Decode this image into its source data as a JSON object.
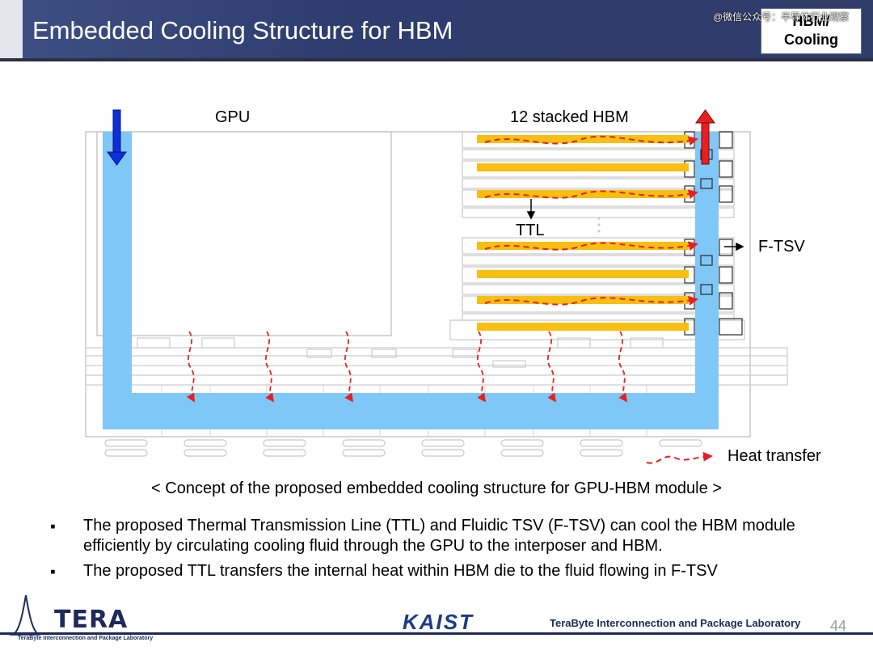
{
  "header": {
    "title": "Embedded Cooling Structure for HBM",
    "badge_line1": "HBM/",
    "badge_line2": "Cooling",
    "watermark": "@微信公众号：半导体行业观察"
  },
  "diagram": {
    "label_gpu": "GPU",
    "label_hbm": "12 stacked HBM",
    "label_ttl": "TTL",
    "label_ftsv": "F-TSV",
    "label_heat": "Heat transfer",
    "colors": {
      "fluid": "#7fc7f7",
      "ttl_bar": "#f8bf10",
      "inflow_arrow": "#0b2fd8",
      "outflow_arrow": "#e62020",
      "heat": "#e62020"
    }
  },
  "caption": "< Concept of the proposed embedded cooling structure for GPU-HBM module >",
  "bullets": [
    "The proposed Thermal Transmission Line (TTL) and Fluidic TSV (F-TSV) can cool the HBM module efficiently by circulating cooling fluid through the GPU to the interposer and HBM.",
    "The proposed TTL transfers the internal heat within HBM die to the fluid flowing in F-TSV"
  ],
  "footer": {
    "logo_text": "TERA",
    "logo_sub": "TeraByte Interconnection and Package Laboratory",
    "university": "KAIST",
    "lab_name": "TeraByte Interconnection and Package Laboratory",
    "page_number": "44"
  }
}
